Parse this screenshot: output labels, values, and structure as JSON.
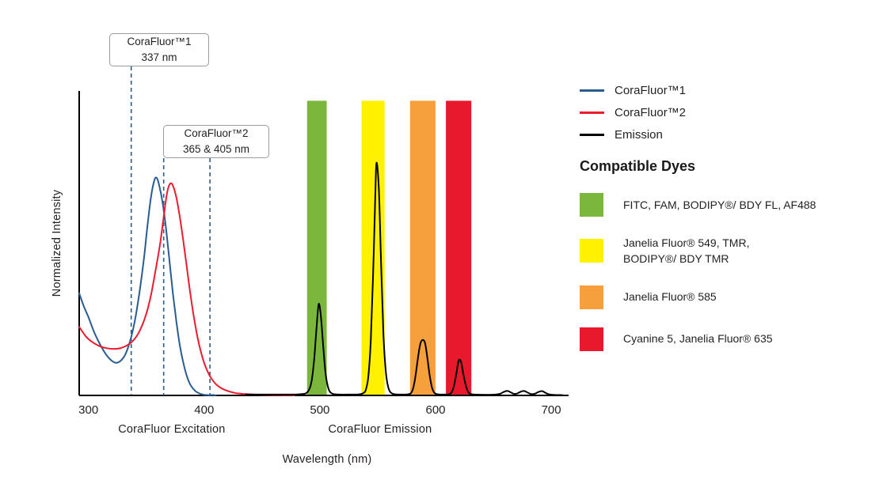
{
  "chart_data": {
    "type": "line",
    "title": "",
    "xlabel": "Wavelength (nm)",
    "ylabel": "Normalized Intensity",
    "xlim": [
      292,
      715
    ],
    "ylim": [
      0,
      1.4
    ],
    "x_ticks": [
      300,
      400,
      500,
      600,
      700
    ],
    "grid": false,
    "axis_section_labels": [
      {
        "text": "CoraFluor Excitation",
        "center_nm": 372
      },
      {
        "text": "CoraFluor Emission",
        "center_nm": 552
      }
    ],
    "bands": [
      {
        "key": "green",
        "color": "#7AB73C",
        "from_nm": 489,
        "to_nm": 506,
        "top": 1.355
      },
      {
        "key": "yellow",
        "color": "#FFF100",
        "from_nm": 536,
        "to_nm": 556,
        "top": 1.355
      },
      {
        "key": "orange",
        "color": "#F5A03C",
        "from_nm": 578,
        "to_nm": 600,
        "top": 1.355
      },
      {
        "key": "red",
        "color": "#E8182D",
        "from_nm": 609,
        "to_nm": 631,
        "top": 1.355
      }
    ],
    "annotations": [
      {
        "id": "cf1",
        "lines": [
          "CoraFluor™1",
          "337 nm"
        ],
        "marks_nm": [
          337
        ]
      },
      {
        "id": "cf2",
        "lines": [
          "CoraFluor™2",
          "365 & 405 nm"
        ],
        "marks_nm": [
          365,
          405
        ]
      }
    ],
    "series": [
      {
        "key": "corafluor1",
        "name": "CoraFluor™1",
        "color": "#2A5C8F",
        "width": 2,
        "points": [
          [
            292,
            0.47
          ],
          [
            296,
            0.41
          ],
          [
            300,
            0.36
          ],
          [
            305,
            0.29
          ],
          [
            310,
            0.235
          ],
          [
            315,
            0.19
          ],
          [
            320,
            0.16
          ],
          [
            324,
            0.15
          ],
          [
            328,
            0.16
          ],
          [
            332,
            0.19
          ],
          [
            336,
            0.25
          ],
          [
            340,
            0.34
          ],
          [
            344,
            0.47
          ],
          [
            348,
            0.63
          ],
          [
            351,
            0.78
          ],
          [
            354,
            0.91
          ],
          [
            357,
            0.99
          ],
          [
            359,
            1.0
          ],
          [
            361,
            0.97
          ],
          [
            364,
            0.89
          ],
          [
            367,
            0.77
          ],
          [
            370,
            0.62
          ],
          [
            373,
            0.47
          ],
          [
            376,
            0.34
          ],
          [
            379,
            0.23
          ],
          [
            382,
            0.15
          ],
          [
            385,
            0.09
          ],
          [
            388,
            0.05
          ],
          [
            392,
            0.022
          ],
          [
            396,
            0.009
          ],
          [
            400,
            0.003
          ],
          [
            404,
            0.001
          ],
          [
            410,
            0
          ]
        ]
      },
      {
        "key": "corafluor2",
        "name": "CoraFluor™2",
        "color": "#EC1B2E",
        "width": 2,
        "points": [
          [
            292,
            0.315
          ],
          [
            298,
            0.27
          ],
          [
            304,
            0.243
          ],
          [
            310,
            0.226
          ],
          [
            316,
            0.217
          ],
          [
            322,
            0.214
          ],
          [
            328,
            0.218
          ],
          [
            334,
            0.232
          ],
          [
            340,
            0.26
          ],
          [
            345,
            0.305
          ],
          [
            350,
            0.375
          ],
          [
            354,
            0.46
          ],
          [
            358,
            0.575
          ],
          [
            362,
            0.7
          ],
          [
            365,
            0.82
          ],
          [
            367,
            0.9
          ],
          [
            369,
            0.955
          ],
          [
            371,
            0.975
          ],
          [
            373,
            0.965
          ],
          [
            376,
            0.91
          ],
          [
            379,
            0.82
          ],
          [
            382,
            0.71
          ],
          [
            385,
            0.59
          ],
          [
            388,
            0.47
          ],
          [
            391,
            0.365
          ],
          [
            394,
            0.275
          ],
          [
            397,
            0.205
          ],
          [
            400,
            0.15
          ],
          [
            403,
            0.11
          ],
          [
            406,
            0.08
          ],
          [
            410,
            0.053
          ],
          [
            414,
            0.036
          ],
          [
            418,
            0.025
          ],
          [
            423,
            0.016
          ],
          [
            428,
            0.01
          ],
          [
            434,
            0.007
          ],
          [
            442,
            0.0045
          ],
          [
            450,
            0.003
          ],
          [
            460,
            0.0015
          ],
          [
            470,
            0.0008
          ],
          [
            478,
            0
          ]
        ]
      },
      {
        "key": "emission",
        "name": "Emission",
        "color": "#000000",
        "width": 2,
        "points": [
          [
            436,
            0.004
          ],
          [
            450,
            0.004
          ],
          [
            462,
            0.004
          ],
          [
            474,
            0.004
          ],
          [
            482,
            0.005
          ],
          [
            488,
            0.01
          ],
          [
            491,
            0.03
          ],
          [
            493,
            0.07
          ],
          [
            495,
            0.16
          ],
          [
            497,
            0.3
          ],
          [
            499,
            0.42
          ],
          [
            501,
            0.36
          ],
          [
            503,
            0.22
          ],
          [
            505,
            0.1
          ],
          [
            507,
            0.04
          ],
          [
            509,
            0.015
          ],
          [
            512,
            0.006
          ],
          [
            518,
            0.004
          ],
          [
            526,
            0.004
          ],
          [
            534,
            0.005
          ],
          [
            538,
            0.012
          ],
          [
            540,
            0.03
          ],
          [
            542,
            0.09
          ],
          [
            544,
            0.25
          ],
          [
            546,
            0.55
          ],
          [
            548,
            0.93
          ],
          [
            549,
            1.07
          ],
          [
            551,
            0.95
          ],
          [
            553,
            0.6
          ],
          [
            555,
            0.28
          ],
          [
            557,
            0.11
          ],
          [
            559,
            0.04
          ],
          [
            561,
            0.015
          ],
          [
            564,
            0.006
          ],
          [
            570,
            0.004
          ],
          [
            576,
            0.005
          ],
          [
            579,
            0.012
          ],
          [
            581,
            0.04
          ],
          [
            583,
            0.1
          ],
          [
            585,
            0.18
          ],
          [
            587,
            0.24
          ],
          [
            589,
            0.255
          ],
          [
            591,
            0.24
          ],
          [
            593,
            0.17
          ],
          [
            595,
            0.09
          ],
          [
            597,
            0.035
          ],
          [
            599,
            0.012
          ],
          [
            602,
            0.005
          ],
          [
            608,
            0.004
          ],
          [
            612,
            0.006
          ],
          [
            614,
            0.015
          ],
          [
            616,
            0.045
          ],
          [
            618,
            0.1
          ],
          [
            620,
            0.16
          ],
          [
            622,
            0.155
          ],
          [
            624,
            0.1
          ],
          [
            626,
            0.05
          ],
          [
            628,
            0.018
          ],
          [
            630,
            0.007
          ],
          [
            634,
            0.004
          ],
          [
            645,
            0.003
          ],
          [
            652,
            0.004
          ],
          [
            656,
            0.008
          ],
          [
            659,
            0.016
          ],
          [
            662,
            0.021
          ],
          [
            665,
            0.014
          ],
          [
            668,
            0.007
          ],
          [
            671,
            0.01
          ],
          [
            674,
            0.018
          ],
          [
            677,
            0.02
          ],
          [
            680,
            0.012
          ],
          [
            683,
            0.006
          ],
          [
            686,
            0.008
          ],
          [
            689,
            0.016
          ],
          [
            692,
            0.02
          ],
          [
            695,
            0.012
          ],
          [
            698,
            0.005
          ],
          [
            703,
            0.002
          ],
          [
            710,
            0.001
          ]
        ]
      }
    ]
  },
  "legend": {
    "series": [
      {
        "label": "CoraFluor™1",
        "color": "#2A5C8F"
      },
      {
        "label": "CoraFluor™2",
        "color": "#EC1B2E"
      },
      {
        "label": "Emission",
        "color": "#000000"
      }
    ],
    "dyes_heading": "Compatible Dyes",
    "dyes": [
      {
        "color": "#7AB73C",
        "label": "FITC, FAM, BODIPY®/ BDY FL, AF488"
      },
      {
        "color": "#FFF100",
        "label": "Janelia Fluor® 549, TMR,\nBODIPY®/ BDY TMR"
      },
      {
        "color": "#F5A03C",
        "label": "Janelia Fluor® 585"
      },
      {
        "color": "#E8182D",
        "label": "Cyanine 5, Janelia Fluor® 635"
      }
    ]
  }
}
